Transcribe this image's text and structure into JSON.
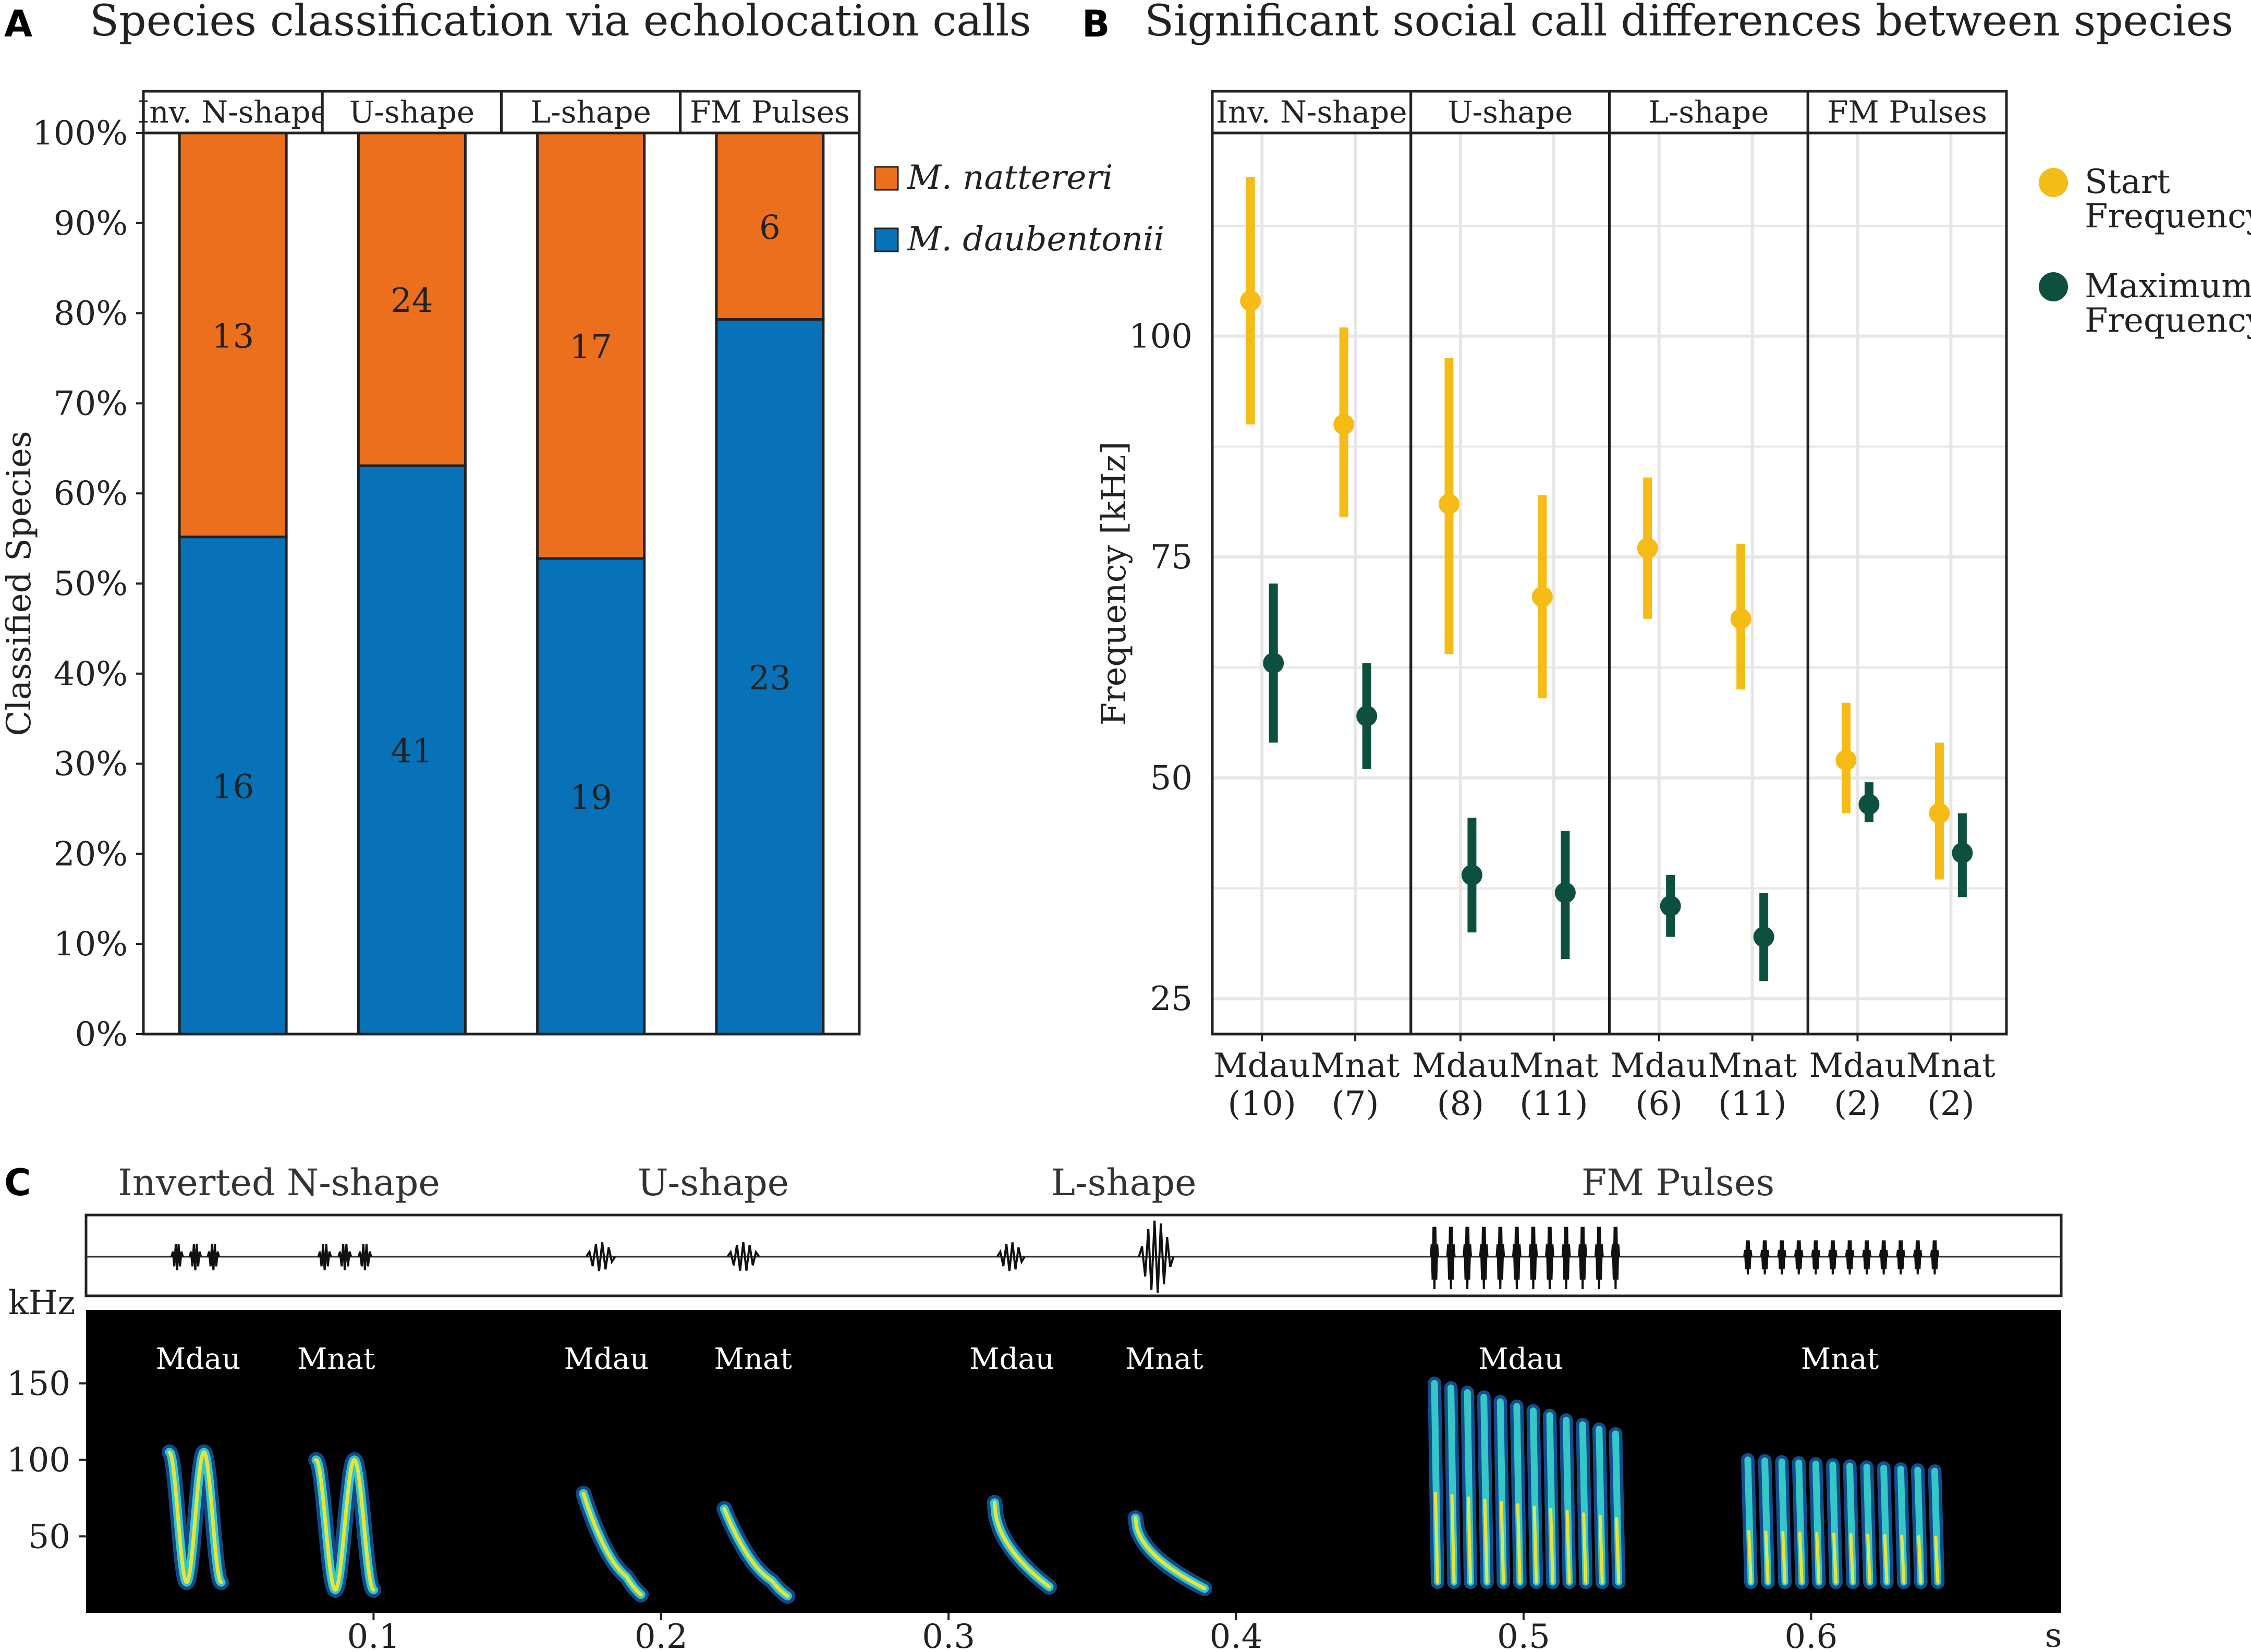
{
  "colors": {
    "nattereri": "#EC6F1E",
    "daubentonii": "#0772B7",
    "start_frequency": "#F5BC17",
    "maximum_frequency": "#0E5040",
    "spectrogram_bg": "#000000",
    "grid": "#E6E6E6"
  },
  "panels": {
    "a": {
      "label": "A",
      "title": "Species classification via echolocation calls"
    },
    "b": {
      "label": "B",
      "title": "Significant social call differences between species"
    },
    "c": {
      "label": "C"
    }
  },
  "chart_data": [
    {
      "id": "A",
      "type": "bar",
      "stacked": true,
      "facets": [
        "Inv. N-shape",
        "U-shape",
        "L-shape",
        "FM Pulses"
      ],
      "series": [
        {
          "name": "M. daubentonii",
          "color": "#0772B7",
          "counts": [
            16,
            41,
            19,
            23
          ]
        },
        {
          "name": "M. nattereri",
          "color": "#EC6F1E",
          "counts": [
            13,
            24,
            17,
            6
          ]
        }
      ],
      "ylabel": "Classified Species",
      "ylim": [
        0,
        100
      ],
      "yticks": [
        "0%",
        "10%",
        "20%",
        "30%",
        "40%",
        "50%",
        "60%",
        "70%",
        "80%",
        "90%",
        "100%"
      ],
      "legend": [
        "M. nattereri",
        "M. daubentonii"
      ]
    },
    {
      "id": "B",
      "type": "scatter",
      "error_bars": true,
      "ylabel": "Frequency [kHz]",
      "ylim": [
        21,
        123
      ],
      "yticks": [
        25,
        50,
        75,
        100
      ],
      "facets": [
        {
          "name": "Inv. N-shape",
          "groups": [
            {
              "label": "Mdau",
              "n": "(10)",
              "start": {
                "mean": 104,
                "low": 90,
                "high": 118
              },
              "max": {
                "mean": 63,
                "low": 54,
                "high": 72
              }
            },
            {
              "label": "Mnat",
              "n": "(7)",
              "start": {
                "mean": 90,
                "low": 79.5,
                "high": 101
              },
              "max": {
                "mean": 57,
                "low": 51,
                "high": 63
              }
            }
          ]
        },
        {
          "name": "U-shape",
          "groups": [
            {
              "label": "Mdau",
              "n": "(8)",
              "start": {
                "mean": 81,
                "low": 64,
                "high": 97.5
              },
              "max": {
                "mean": 39,
                "low": 32.5,
                "high": 45.5
              }
            },
            {
              "label": "Mnat",
              "n": "(11)",
              "start": {
                "mean": 70.5,
                "low": 59,
                "high": 82
              },
              "max": {
                "mean": 37,
                "low": 29.5,
                "high": 44
              }
            }
          ]
        },
        {
          "name": "L-shape",
          "groups": [
            {
              "label": "Mdau",
              "n": "(6)",
              "start": {
                "mean": 76,
                "low": 68,
                "high": 84
              },
              "max": {
                "mean": 35.5,
                "low": 32,
                "high": 39
              }
            },
            {
              "label": "Mnat",
              "n": "(11)",
              "start": {
                "mean": 68,
                "low": 60,
                "high": 76.5
              },
              "max": {
                "mean": 32,
                "low": 27,
                "high": 37
              }
            }
          ]
        },
        {
          "name": "FM Pulses",
          "groups": [
            {
              "label": "Mdau",
              "n": "(2)",
              "start": {
                "mean": 52,
                "low": 46,
                "high": 58.5
              },
              "max": {
                "mean": 47,
                "low": 45,
                "high": 49.5
              }
            },
            {
              "label": "Mnat",
              "n": "(2)",
              "start": {
                "mean": 46,
                "low": 38.5,
                "high": 54
              },
              "max": {
                "mean": 41.5,
                "low": 36.5,
                "high": 46
              }
            }
          ]
        }
      ],
      "legend": [
        {
          "name": "Start Frequency",
          "lines": [
            "Start",
            "Frequency"
          ],
          "color": "#F5BC17"
        },
        {
          "name": "Maximum Frequency",
          "lines": [
            "Maximum",
            "Frequency"
          ],
          "color": "#0E5040"
        }
      ]
    },
    {
      "id": "C",
      "type": "spectrogram",
      "segments": [
        "Inverted N-shape",
        "U-shape",
        "L-shape",
        "FM Pulses"
      ],
      "x_unit": "s",
      "x_ticks": [
        0.1,
        0.2,
        0.3,
        0.4,
        0.5,
        0.6
      ],
      "x_range": [
        0,
        0.687
      ],
      "y_unit": "kHz",
      "y_ticks": [
        50,
        100,
        150
      ],
      "y_range": [
        0,
        198
      ],
      "call_labels": [
        {
          "text": "Mdau",
          "t": 0.039
        },
        {
          "text": "Mnat",
          "t": 0.087
        },
        {
          "text": "Mdau",
          "t": 0.181
        },
        {
          "text": "Mnat",
          "t": 0.232
        },
        {
          "text": "Mdau",
          "t": 0.322
        },
        {
          "text": "Mnat",
          "t": 0.375
        },
        {
          "text": "Mdau",
          "t": 0.499
        },
        {
          "text": "Mnat",
          "t": 0.61
        }
      ],
      "calls": [
        {
          "kind": "invN",
          "t0": 0.029,
          "t1": 0.047,
          "fmin": 20,
          "fmax": 105
        },
        {
          "kind": "invN",
          "t0": 0.08,
          "t1": 0.1,
          "fmin": 15,
          "fmax": 100
        },
        {
          "kind": "U",
          "t0": 0.173,
          "t1": 0.193,
          "fmin": 20,
          "fmax": 78
        },
        {
          "kind": "U",
          "t0": 0.222,
          "t1": 0.244,
          "fmin": 18,
          "fmax": 68
        },
        {
          "kind": "L",
          "t0": 0.316,
          "t1": 0.335,
          "fmin": 17,
          "fmax": 72
        },
        {
          "kind": "L",
          "t0": 0.365,
          "t1": 0.389,
          "fmin": 16,
          "fmax": 62
        },
        {
          "kind": "FM",
          "t0": 0.469,
          "t1": 0.532,
          "fmin": 20,
          "fmax": 150,
          "count": 12
        },
        {
          "kind": "FM",
          "t0": 0.578,
          "t1": 0.643,
          "fmin": 20,
          "fmax": 100,
          "count": 12
        }
      ]
    }
  ]
}
